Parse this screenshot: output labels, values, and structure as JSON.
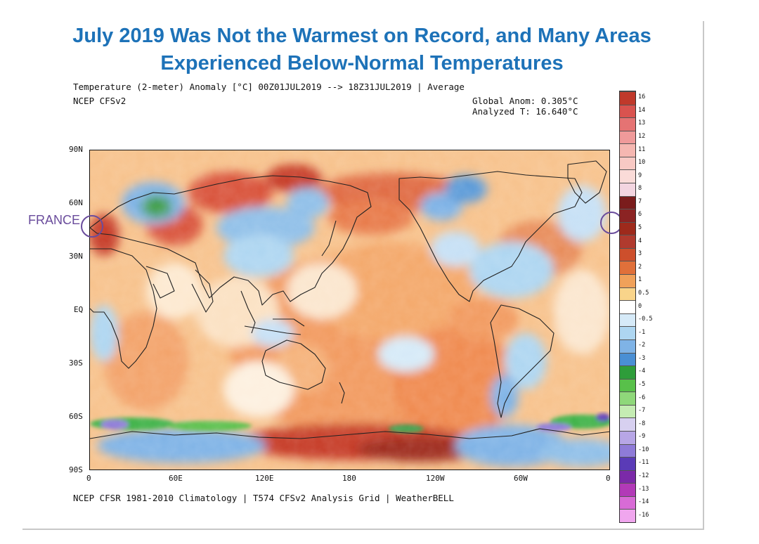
{
  "title": {
    "line1": "July 2019 Was Not the Warmest on Record, and Many Areas",
    "line2": "Experienced Below-Normal Temperatures"
  },
  "header": {
    "product": "Temperature (2-meter) Anomaly  [°C] 00Z01JUL2019 --> 18Z31JUL2019 | Average",
    "model": "NCEP CFSv2",
    "global_anom": "Global Anom: 0.305°C",
    "analyzed_t": "Analyzed T: 16.640°C"
  },
  "footer": "NCEP CFSR 1981-2010 Climatology | T574 CFSv2 Analysis Grid | WeatherBELL",
  "annotation": {
    "label": "FRANCE",
    "color": "#6a4c9c"
  },
  "axes": {
    "lat_labels": [
      "90N",
      "60N",
      "30N",
      "EQ",
      "30S",
      "60S",
      "90S"
    ],
    "lon_labels": [
      "0",
      "60E",
      "120E",
      "180",
      "120W",
      "60W",
      "0"
    ]
  },
  "colorbar": {
    "labels": [
      "16",
      "14",
      "13",
      "12",
      "11",
      "10",
      "9",
      "8",
      "7",
      "6",
      "5",
      "4",
      "3",
      "2",
      "1",
      "0.5",
      "0",
      "-0.5",
      "-1",
      "-2",
      "-3",
      "-4",
      "-5",
      "-6",
      "-7",
      "-8",
      "-9",
      "-10",
      "-11",
      "-12",
      "-13",
      "-14",
      "-16"
    ],
    "colors": [
      "#c0392b",
      "#d9534f",
      "#e57373",
      "#ef9a9a",
      "#f5b7b1",
      "#f8c9c4",
      "#fadbd8",
      "#f3d5e0",
      "#7a1c1c",
      "#8b2323",
      "#9e2a1c",
      "#b03a2e",
      "#cd4f2c",
      "#e0703a",
      "#f0a15a",
      "#f9d48a",
      "#ffffff",
      "#d6eaf8",
      "#aed6f1",
      "#7fb3e6",
      "#4a8fd4",
      "#2e9d3a",
      "#58c04a",
      "#8fd87a",
      "#c5ecb3",
      "#d7d0f0",
      "#b7a6e6",
      "#8f7bd8",
      "#5a3bb7",
      "#7b2aa8",
      "#b23ab7",
      "#d86bd6",
      "#f0a6ee"
    ]
  }
}
